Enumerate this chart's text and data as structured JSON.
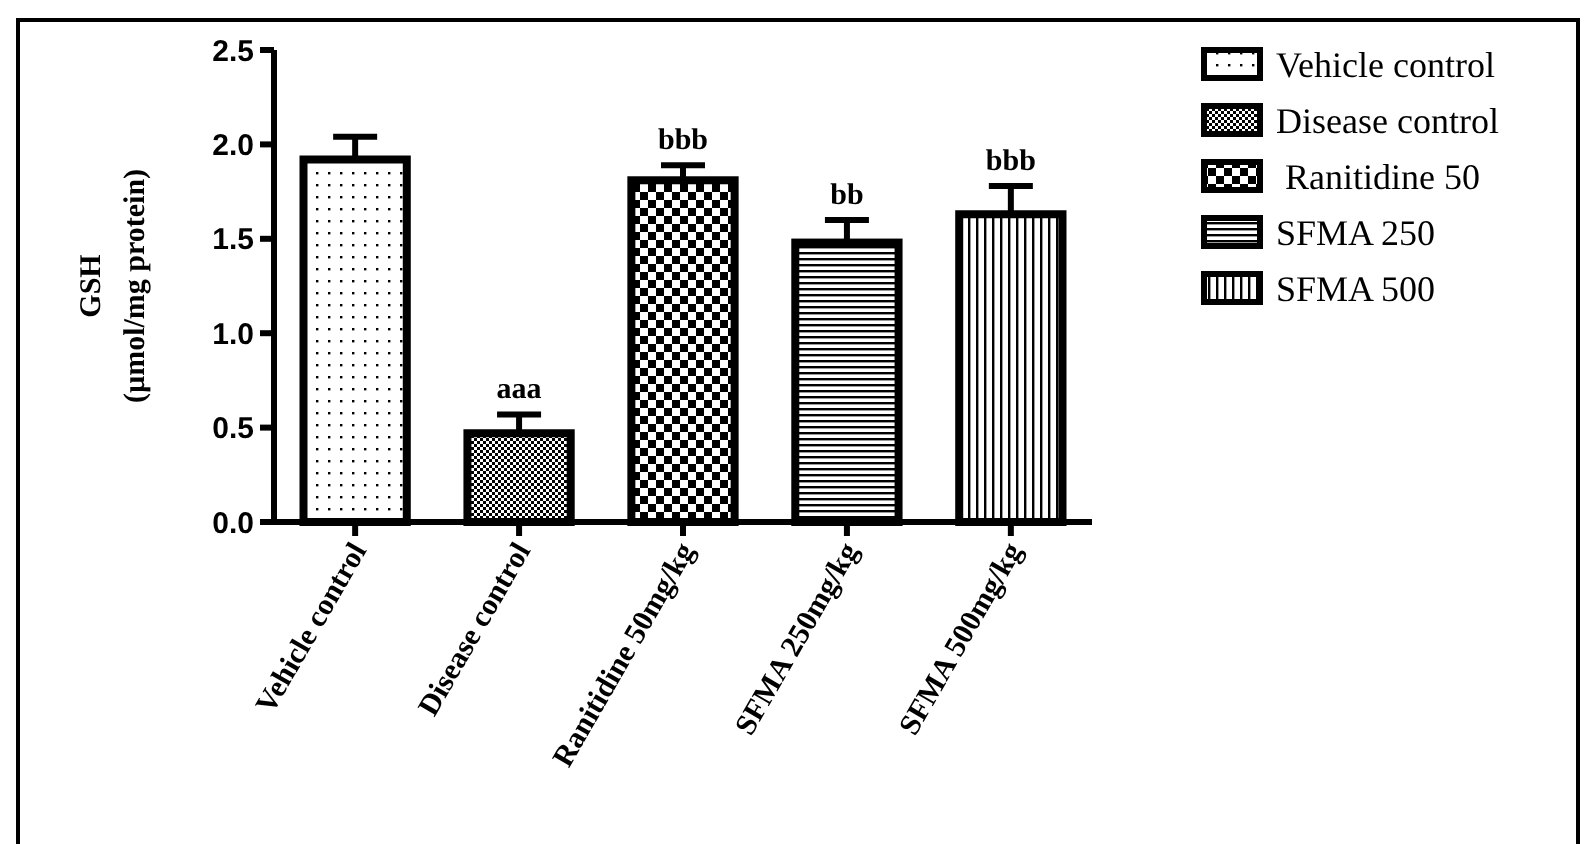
{
  "chart_data": {
    "type": "bar",
    "ylabel": "GSH\n(µmol/mg protein)",
    "categories": [
      "Vehicle control",
      "Disease control",
      "Ranitidine 50mg/kg",
      "SFMA 250mg/kg",
      "SFMA 500mg/kg"
    ],
    "series": [
      {
        "name": "Vehicle control",
        "color": "#000000",
        "values": [
          1.92,
          null,
          null,
          null,
          null
        ],
        "errors": [
          0.12,
          null,
          null,
          null,
          null
        ]
      },
      {
        "name": "Disease control",
        "color": "#000000",
        "values": [
          null,
          0.47,
          null,
          null,
          null
        ],
        "errors": [
          null,
          0.1,
          null,
          null,
          null
        ]
      },
      {
        "name": " Ranitidine 50",
        "color": "#000000",
        "values": [
          null,
          null,
          1.81,
          null,
          null
        ],
        "errors": [
          null,
          null,
          0.08,
          null,
          null
        ]
      },
      {
        "name": "SFMA 250",
        "color": "#000000",
        "values": [
          null,
          null,
          null,
          1.48,
          null
        ],
        "errors": [
          null,
          null,
          null,
          0.12,
          null
        ]
      },
      {
        "name": "SFMA 500",
        "color": "#000000",
        "values": [
          null,
          null,
          null,
          null,
          1.63
        ],
        "errors": [
          null,
          null,
          null,
          null,
          0.15
        ]
      }
    ],
    "annotations": [
      {
        "text": "aaa",
        "x": "Disease control",
        "y": 0.57
      },
      {
        "text": "bbb",
        "x": "Ranitidine 50mg/kg",
        "y": 1.89
      },
      {
        "text": "bb",
        "x": "SFMA 250mg/kg",
        "y": 1.6
      },
      {
        "text": "bbb",
        "x": "SFMA 500mg/kg",
        "y": 1.78
      }
    ],
    "ylim": [
      0,
      2.5
    ],
    "yticks": [
      {
        "value": 0,
        "label": "0.0"
      },
      {
        "value": 0.5,
        "label": "0.5"
      },
      {
        "value": 1,
        "label": "1.0"
      },
      {
        "value": 1.5,
        "label": "1.5"
      },
      {
        "value": 2,
        "label": "2.0"
      },
      {
        "value": 2.5,
        "label": "2.5"
      }
    ],
    "grid": false,
    "legend": "top right"
  }
}
